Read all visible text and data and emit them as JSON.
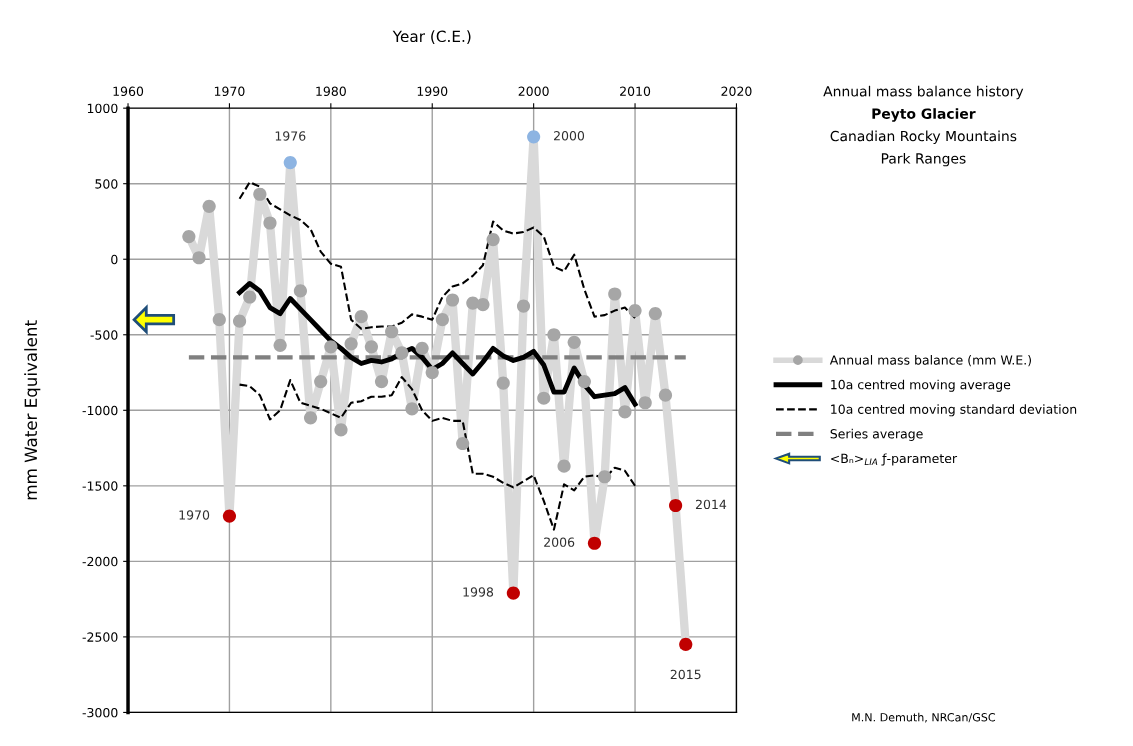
{
  "chart_data": {
    "type": "line",
    "title": "Annual mass balance history",
    "subtitle": "Peyto Glacier",
    "xlabel": "Year (C.E.)",
    "ylabel": "mm Water Equivalent",
    "xlim": [
      1960,
      2020
    ],
    "xticks": [
      1960,
      1970,
      1980,
      1990,
      2000,
      2010,
      2020
    ],
    "ylim": [
      -3000,
      1000
    ],
    "yticks": [
      -3000,
      -2500,
      -2000,
      -1500,
      -1000,
      -500,
      0,
      500,
      1000
    ],
    "grid": true,
    "legend": "right",
    "series": [
      {
        "name": "Annual mass balance (mm W.E.)",
        "color": "#d9d9d9",
        "marker": "circle",
        "x": [
          1966,
          1967,
          1968,
          1969,
          1970,
          1971,
          1972,
          1973,
          1974,
          1975,
          1976,
          1977,
          1978,
          1979,
          1980,
          1981,
          1982,
          1983,
          1984,
          1985,
          1986,
          1987,
          1988,
          1989,
          1990,
          1991,
          1992,
          1993,
          1994,
          1995,
          1996,
          1997,
          1998,
          1999,
          2000,
          2001,
          2002,
          2003,
          2004,
          2005,
          2006,
          2007,
          2008,
          2009,
          2010,
          2011,
          2012,
          2013,
          2014,
          2015
        ],
        "values": [
          150,
          10,
          350,
          -400,
          -1700,
          -410,
          -250,
          430,
          240,
          -570,
          640,
          -210,
          -1050,
          -810,
          -580,
          -1130,
          -560,
          -380,
          -580,
          -810,
          -480,
          -620,
          -990,
          -590,
          -750,
          -400,
          -270,
          -1220,
          -290,
          -300,
          130,
          -820,
          -2210,
          -310,
          810,
          -920,
          -500,
          -1370,
          -550,
          -810,
          -1880,
          -1440,
          -230,
          -1010,
          -340,
          -950,
          -360,
          -900,
          -1630,
          -2550
        ],
        "colors": [
          "#a6a6a6",
          "#a6a6a6",
          "#a6a6a6",
          "#a6a6a6",
          "#c00000",
          "#a6a6a6",
          "#a6a6a6",
          "#a6a6a6",
          "#a6a6a6",
          "#a6a6a6",
          "#8db4e2",
          "#a6a6a6",
          "#a6a6a6",
          "#a6a6a6",
          "#a6a6a6",
          "#a6a6a6",
          "#a6a6a6",
          "#a6a6a6",
          "#a6a6a6",
          "#a6a6a6",
          "#a6a6a6",
          "#a6a6a6",
          "#a6a6a6",
          "#a6a6a6",
          "#a6a6a6",
          "#a6a6a6",
          "#a6a6a6",
          "#a6a6a6",
          "#a6a6a6",
          "#a6a6a6",
          "#a6a6a6",
          "#a6a6a6",
          "#c00000",
          "#a6a6a6",
          "#8db4e2",
          "#a6a6a6",
          "#a6a6a6",
          "#a6a6a6",
          "#a6a6a6",
          "#a6a6a6",
          "#c00000",
          "#a6a6a6",
          "#a6a6a6",
          "#a6a6a6",
          "#a6a6a6",
          "#a6a6a6",
          "#a6a6a6",
          "#a6a6a6",
          "#c00000",
          "#c00000"
        ]
      },
      {
        "name": "10a centred moving average",
        "color": "#000000",
        "x": [
          1971,
          1972,
          1973,
          1974,
          1975,
          1976,
          1977,
          1978,
          1979,
          1980,
          1981,
          1982,
          1983,
          1984,
          1985,
          1986,
          1987,
          1988,
          1989,
          1990,
          1991,
          1992,
          1993,
          1994,
          1995,
          1996,
          1997,
          1998,
          1999,
          2000,
          2001,
          2002,
          2003,
          2004,
          2005,
          2006,
          2007,
          2008,
          2009,
          2010
        ],
        "values": [
          -220,
          -160,
          -210,
          -320,
          -360,
          -260,
          -330,
          -400,
          -470,
          -540,
          -590,
          -650,
          -690,
          -670,
          -680,
          -660,
          -620,
          -590,
          -650,
          -730,
          -690,
          -620,
          -690,
          -760,
          -680,
          -590,
          -640,
          -670,
          -650,
          -610,
          -700,
          -880,
          -880,
          -720,
          -830,
          -910,
          -900,
          -890,
          -850,
          -960
        ]
      },
      {
        "name": "10a centred moving standard deviation",
        "color": "#000000",
        "line_style": "dashed",
        "x": [
          1971,
          1972,
          1973,
          1974,
          1975,
          1976,
          1977,
          1978,
          1979,
          1980,
          1981,
          1982,
          1983,
          1984,
          1985,
          1986,
          1987,
          1988,
          1989,
          1990,
          1991,
          1992,
          1993,
          1994,
          1995,
          1996,
          1997,
          1998,
          1999,
          2000,
          2001,
          2002,
          2003,
          2004,
          2005,
          2006,
          2007,
          2008,
          2009,
          2010
        ],
        "values": [
          400,
          510,
          480,
          370,
          330,
          290,
          260,
          200,
          50,
          -30,
          -50,
          -400,
          -460,
          -450,
          -445,
          -445,
          -420,
          -365,
          -380,
          -400,
          -250,
          -180,
          -160,
          -110,
          -40,
          250,
          190,
          170,
          180,
          210,
          150,
          -50,
          -80,
          30,
          -200,
          -380,
          -370,
          -340,
          -320,
          -390
        ]
      },
      {
        "color": "#000000",
        "line_style": "dashed",
        "x": [
          1971,
          1972,
          1973,
          1974,
          1975,
          1976,
          1977,
          1978,
          1979,
          1980,
          1981,
          1982,
          1983,
          1984,
          1985,
          1986,
          1987,
          1988,
          1989,
          1990,
          1991,
          1992,
          1993,
          1994,
          1995,
          1996,
          1997,
          1998,
          1999,
          2000,
          2001,
          2002,
          2003,
          2004,
          2005,
          2006,
          2007,
          2008,
          2009,
          2010
        ],
        "values": [
          -830,
          -840,
          -900,
          -1060,
          -1000,
          -800,
          -950,
          -970,
          -990,
          -1020,
          -1050,
          -950,
          -940,
          -910,
          -910,
          -900,
          -780,
          -860,
          -1000,
          -1070,
          -1050,
          -1070,
          -1070,
          -1420,
          -1420,
          -1440,
          -1480,
          -1510,
          -1470,
          -1430,
          -1600,
          -1790,
          -1490,
          -1530,
          -1440,
          -1430,
          -1450,
          -1380,
          -1400,
          -1500
        ]
      }
    ],
    "ref_lines": [
      {
        "axis": "y",
        "value": -650,
        "label": "Series average",
        "color": "#808080",
        "line_style": "dashed"
      }
    ],
    "annotations": [
      {
        "text": "1976",
        "x": 1976,
        "y": 640
      },
      {
        "text": "2000",
        "x": 2000,
        "y": 810
      },
      {
        "text": "1970",
        "x": 1970,
        "y": -1700
      },
      {
        "text": "1998",
        "x": 1998,
        "y": -2210
      },
      {
        "text": "2006",
        "x": 2006,
        "y": -1880
      },
      {
        "text": "2014",
        "x": 2014,
        "y": -1630
      },
      {
        "text": "2015",
        "x": 2015,
        "y": -2550
      },
      "<Bₙ>$_{LIA}$ ƒ-parameter",
      "Canadian Rocky Mountains",
      "Park Ranges",
      "M.N. Demuth, NRCan/GSC"
    ]
  }
}
